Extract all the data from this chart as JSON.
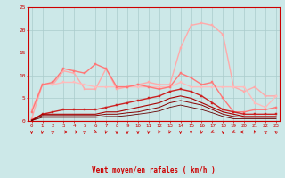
{
  "x": [
    0,
    1,
    2,
    3,
    4,
    5,
    6,
    7,
    8,
    9,
    10,
    11,
    12,
    13,
    14,
    15,
    16,
    17,
    18,
    19,
    20,
    21,
    22,
    23
  ],
  "series": [
    {
      "y": [
        0.5,
        8.0,
        8.0,
        11.0,
        10.5,
        7.0,
        7.0,
        11.5,
        7.0,
        7.5,
        8.0,
        8.5,
        8.0,
        8.0,
        16.0,
        21.0,
        21.5,
        21.0,
        19.0,
        7.5,
        6.5,
        7.5,
        5.5,
        5.5
      ],
      "color": "#ffaaaa",
      "lw": 1.0,
      "marker": "s",
      "ms": 1.8
    },
    {
      "y": [
        2.5,
        8.0,
        8.0,
        8.5,
        8.5,
        8.0,
        7.5,
        7.5,
        7.5,
        7.5,
        7.5,
        7.5,
        7.5,
        7.5,
        8.5,
        7.5,
        7.5,
        7.5,
        7.5,
        7.5,
        7.5,
        4.0,
        3.0,
        5.5
      ],
      "color": "#ffbbbb",
      "lw": 1.0,
      "marker": "s",
      "ms": 1.8
    },
    {
      "y": [
        2.0,
        8.0,
        8.5,
        11.5,
        11.0,
        10.5,
        12.5,
        11.5,
        7.5,
        7.5,
        8.0,
        7.5,
        7.0,
        7.5,
        10.5,
        9.5,
        8.0,
        8.5,
        5.0,
        2.0,
        2.0,
        2.5,
        2.5,
        3.0
      ],
      "color": "#ff7777",
      "lw": 1.0,
      "marker": "s",
      "ms": 1.8
    },
    {
      "y": [
        0.2,
        1.5,
        2.0,
        2.5,
        2.5,
        2.5,
        2.5,
        3.0,
        3.5,
        4.0,
        4.5,
        5.0,
        5.5,
        6.5,
        7.0,
        6.5,
        5.5,
        4.0,
        2.5,
        2.0,
        1.5,
        1.5,
        1.5,
        1.5
      ],
      "color": "#cc2222",
      "lw": 1.0,
      "marker": "s",
      "ms": 1.8
    },
    {
      "y": [
        0.1,
        1.5,
        1.5,
        1.5,
        1.5,
        1.5,
        1.5,
        2.0,
        2.0,
        2.5,
        3.0,
        3.5,
        4.0,
        5.0,
        5.5,
        5.0,
        4.0,
        3.0,
        2.0,
        1.5,
        1.0,
        1.0,
        1.0,
        1.0
      ],
      "color": "#aa0000",
      "lw": 0.8,
      "marker": null,
      "ms": 0
    },
    {
      "y": [
        0.1,
        1.2,
        1.2,
        1.2,
        1.2,
        1.2,
        1.2,
        1.5,
        1.5,
        1.8,
        2.0,
        2.5,
        3.0,
        4.0,
        4.5,
        4.0,
        3.5,
        2.5,
        1.5,
        1.0,
        0.8,
        0.8,
        0.8,
        0.8
      ],
      "color": "#880000",
      "lw": 0.7,
      "marker": null,
      "ms": 0
    },
    {
      "y": [
        0.1,
        0.8,
        0.8,
        0.8,
        0.8,
        0.8,
        0.8,
        1.0,
        1.0,
        1.2,
        1.5,
        1.8,
        2.2,
        3.0,
        3.5,
        3.0,
        2.5,
        1.8,
        1.0,
        0.5,
        0.5,
        0.5,
        0.5,
        0.5
      ],
      "color": "#660000",
      "lw": 0.6,
      "marker": null,
      "ms": 0
    }
  ],
  "ylim": [
    0,
    25
  ],
  "yticks": [
    0,
    5,
    10,
    15,
    20,
    25
  ],
  "xticks": [
    0,
    1,
    2,
    3,
    4,
    5,
    6,
    7,
    8,
    9,
    10,
    11,
    12,
    13,
    14,
    15,
    16,
    17,
    18,
    19,
    20,
    21,
    22,
    23
  ],
  "xlabel": "Vent moyen/en rafales ( km/h )",
  "bg_color": "#cce8e8",
  "grid_color": "#aacccc",
  "axis_color": "#cc0000",
  "text_color": "#cc0000",
  "title": ""
}
